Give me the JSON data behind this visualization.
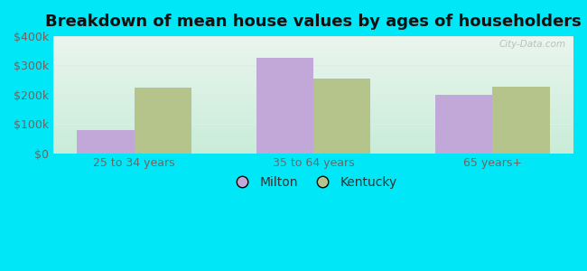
{
  "title": "Breakdown of mean house values by ages of householders",
  "categories": [
    "25 to 34 years",
    "35 to 64 years",
    "65 years+"
  ],
  "milton_values": [
    80000,
    325000,
    200000
  ],
  "kentucky_values": [
    225000,
    255000,
    228000
  ],
  "ylim": [
    0,
    400000
  ],
  "yticks": [
    0,
    100000,
    200000,
    300000,
    400000
  ],
  "ytick_labels": [
    "$0",
    "$100k",
    "$200k",
    "$300k",
    "$400k"
  ],
  "milton_color": "#c2a8d8",
  "kentucky_color": "#b5c48a",
  "bg_outer": "#00e8f8",
  "bg_top_color": "#eaf5ee",
  "bg_bottom_color": "#c8ecd8",
  "title_fontsize": 13,
  "tick_fontsize": 9,
  "legend_fontsize": 10,
  "bar_width": 0.32,
  "watermark": "City-Data.com",
  "grid_color": "#e0ece4",
  "tick_color": "#666666"
}
